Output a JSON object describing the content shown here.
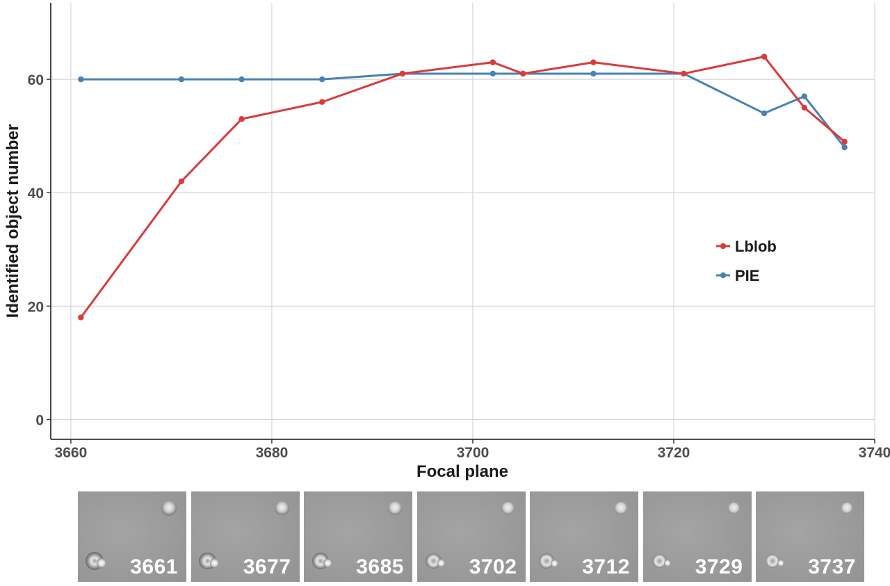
{
  "chart_data": {
    "type": "line",
    "xlabel": "Focal plane",
    "ylabel": "Identified object number",
    "xlim": [
      3658,
      3740
    ],
    "ylim": [
      -3.5,
      73.5
    ],
    "x_ticks": [
      3660,
      3680,
      3700,
      3720,
      3740
    ],
    "y_ticks": [
      0,
      20,
      40,
      60
    ],
    "grid": true,
    "legend_position": "right-center",
    "series": [
      {
        "name": "Lblob",
        "color": "#d93b3b",
        "x": [
          3661,
          3671,
          3677,
          3685,
          3693,
          3702,
          3705,
          3712,
          3721,
          3729,
          3733,
          3737
        ],
        "y": [
          18,
          42,
          53,
          56,
          61,
          63,
          61,
          63,
          61,
          64,
          55,
          49
        ]
      },
      {
        "name": "PIE",
        "color": "#4682b4",
        "x": [
          3661,
          3671,
          3677,
          3685,
          3693,
          3702,
          3705,
          3712,
          3721,
          3729,
          3733,
          3737
        ],
        "y": [
          60,
          60,
          60,
          60,
          61,
          61,
          61,
          61,
          61,
          54,
          57,
          48
        ]
      }
    ]
  },
  "thumbnails": [
    {
      "label": "3661"
    },
    {
      "label": "3677"
    },
    {
      "label": "3685"
    },
    {
      "label": "3702"
    },
    {
      "label": "3712"
    },
    {
      "label": "3729"
    },
    {
      "label": "3737"
    }
  ]
}
